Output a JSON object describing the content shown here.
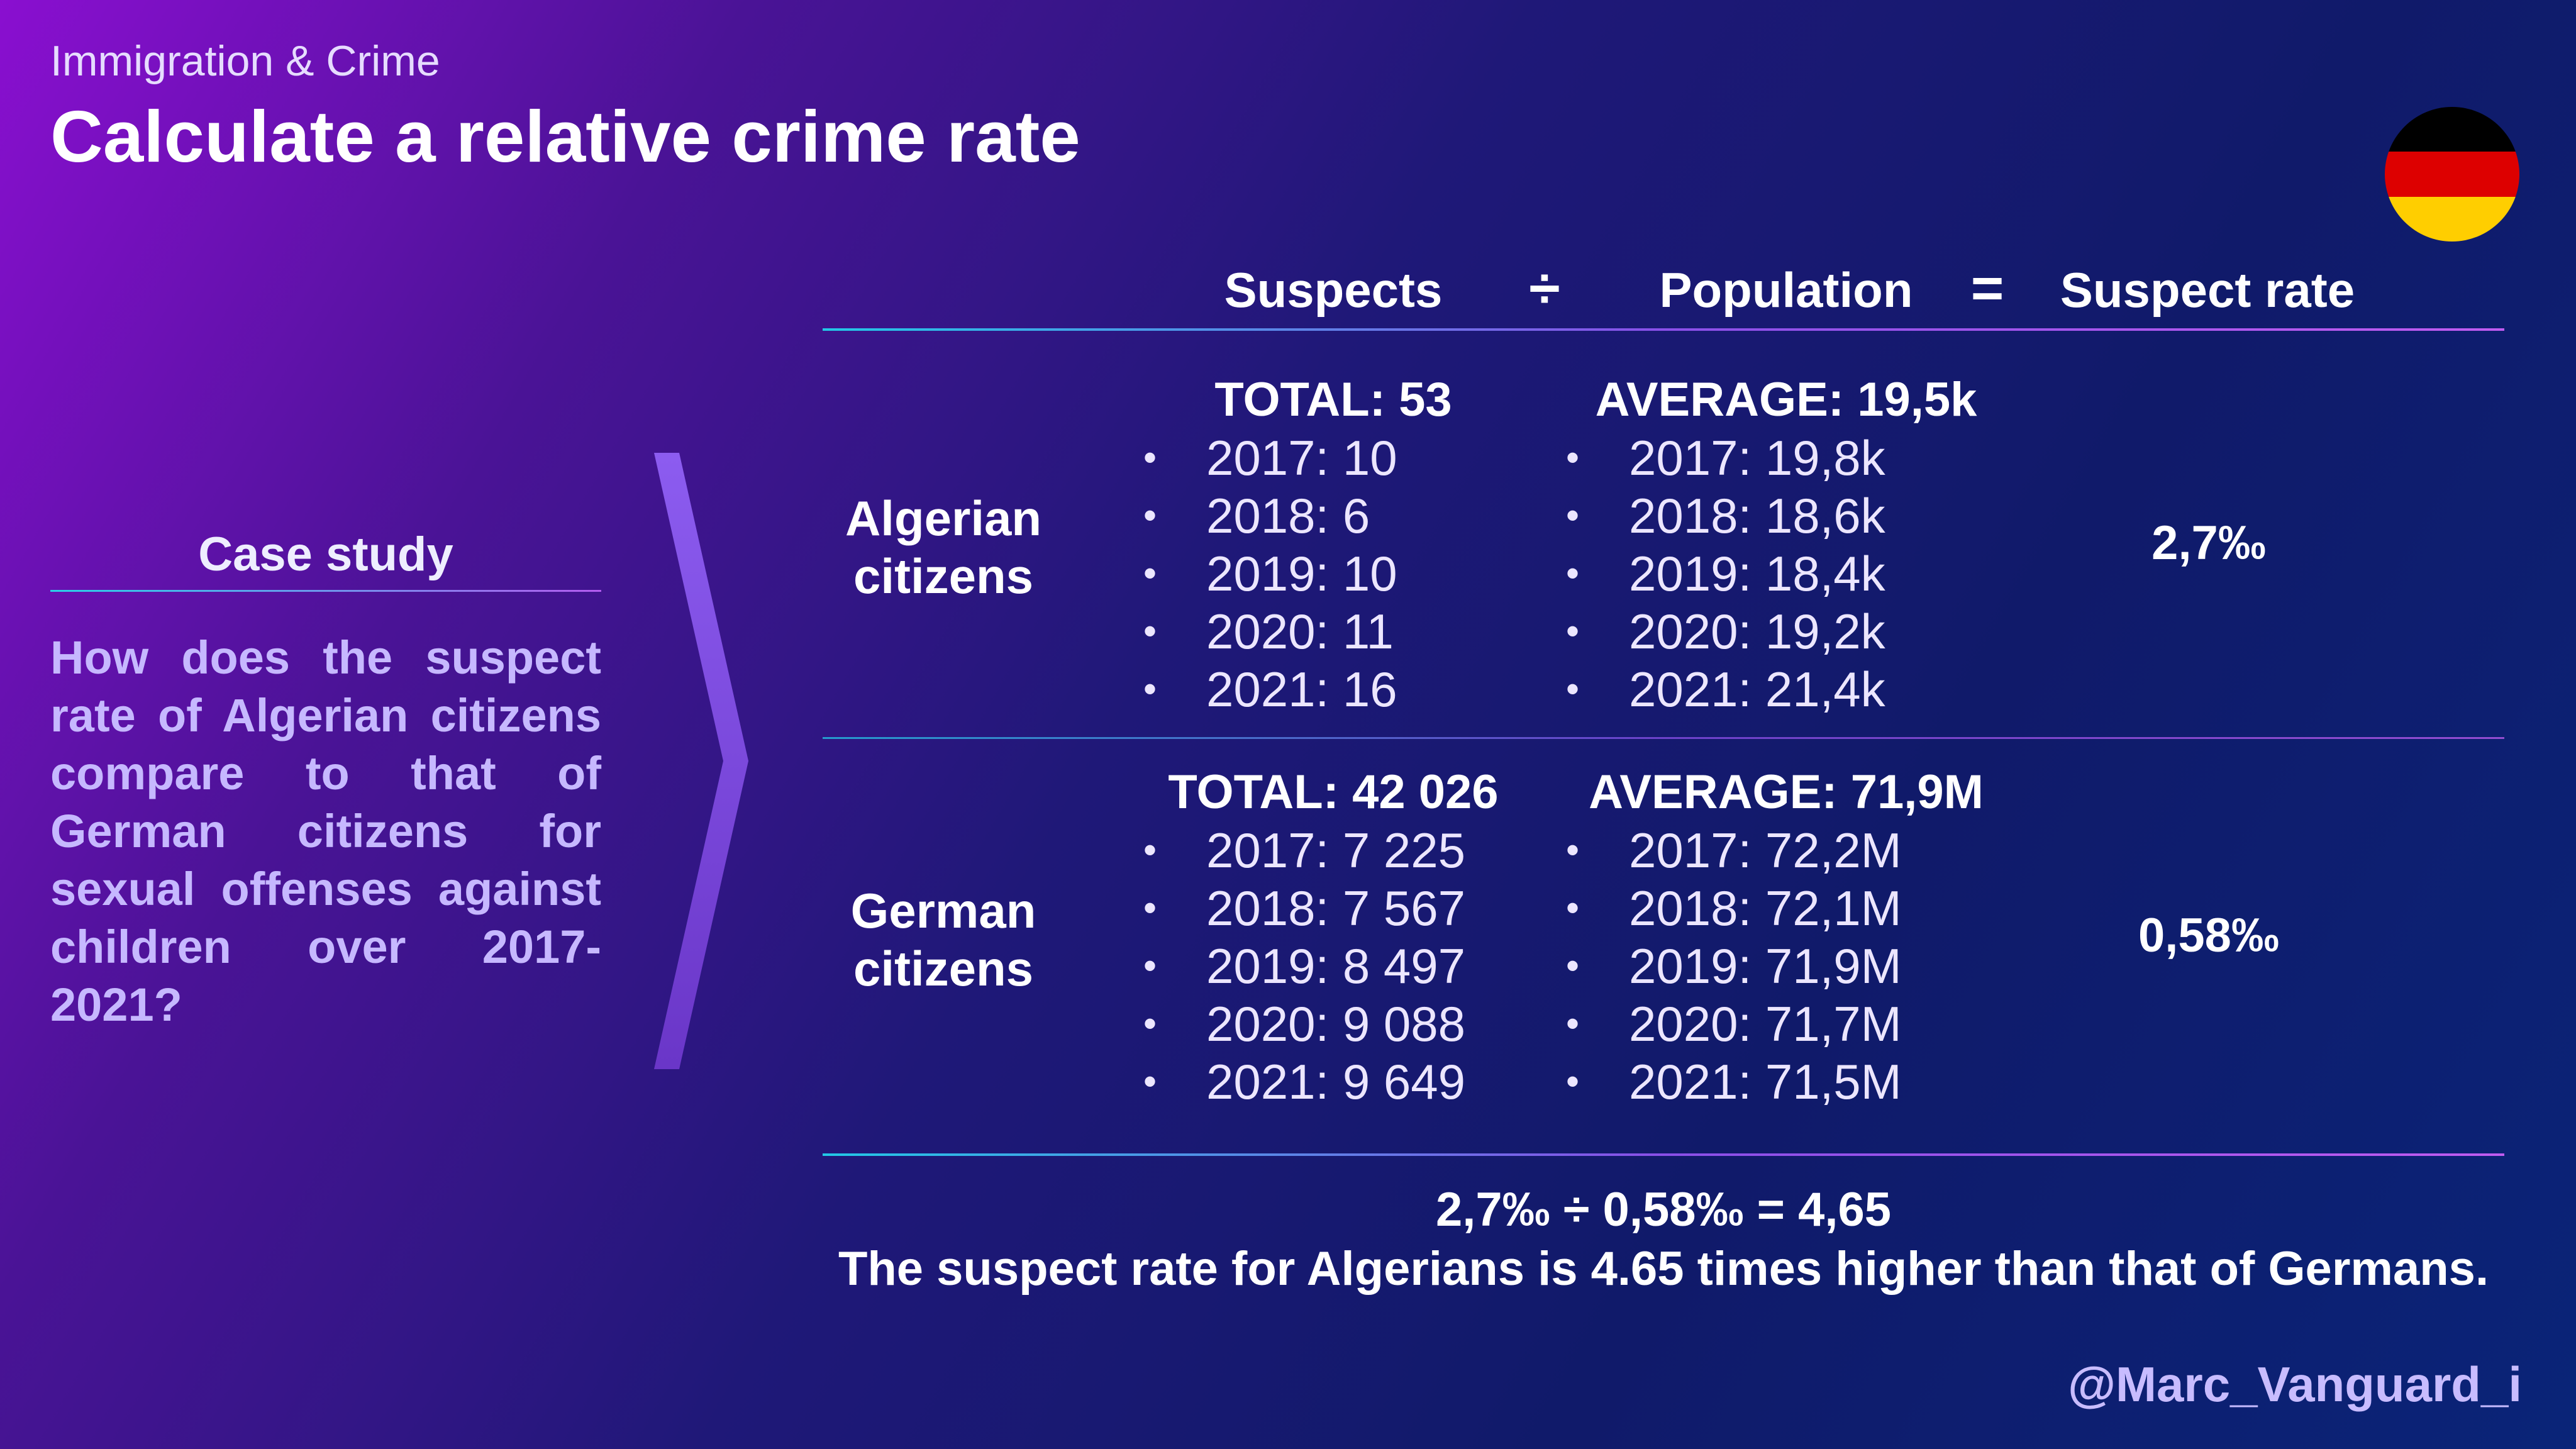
{
  "header": {
    "kicker": "Immigration & Crime",
    "title": "Calculate a relative crime rate"
  },
  "flag": {
    "name": "germany-flag",
    "colors": [
      "#000000",
      "#dd0000",
      "#ffce00"
    ]
  },
  "case_study": {
    "title": "Case study",
    "question": "How does the suspect rate of Algerian citizens compare to that of German citizens for sexual offenses against children over 2017-2021?"
  },
  "table": {
    "headers": {
      "suspects": "Suspects",
      "divide": "÷",
      "population": "Population",
      "equals": "=",
      "rate": "Suspect rate"
    },
    "rows": [
      {
        "label_line1": "Algerian",
        "label_line2": "citizens",
        "suspects_total": "TOTAL: 53",
        "suspects_years": [
          "2017: 10",
          "2018: 6",
          "2019: 10",
          "2020: 11",
          "2021: 16"
        ],
        "population_avg": "AVERAGE: 19,5k",
        "population_years": [
          "2017: 19,8k",
          "2018: 18,6k",
          "2019: 18,4k",
          "2020: 19,2k",
          "2021: 21,4k"
        ],
        "rate": "2,7‰"
      },
      {
        "label_line1": "German",
        "label_line2": "citizens",
        "suspects_total": "TOTAL: 42 026",
        "suspects_years": [
          "2017: 7 225",
          "2018: 7 567",
          "2019: 8 497",
          "2020: 9 088",
          "2021: 9 649"
        ],
        "population_avg": "AVERAGE: 71,9M",
        "population_years": [
          "2017: 72,2M",
          "2018: 72,1M",
          "2019: 71,9M",
          "2020: 71,7M",
          "2021: 71,5M"
        ],
        "rate": "0,58‰"
      }
    ]
  },
  "result": {
    "formula": "2,7‰ ÷ 0,58‰ = 4,65",
    "conclusion": "The suspect rate for Algerians is 4.65 times higher than that of Germans."
  },
  "footer": {
    "handle": "@Marc_Vanguard_i"
  }
}
